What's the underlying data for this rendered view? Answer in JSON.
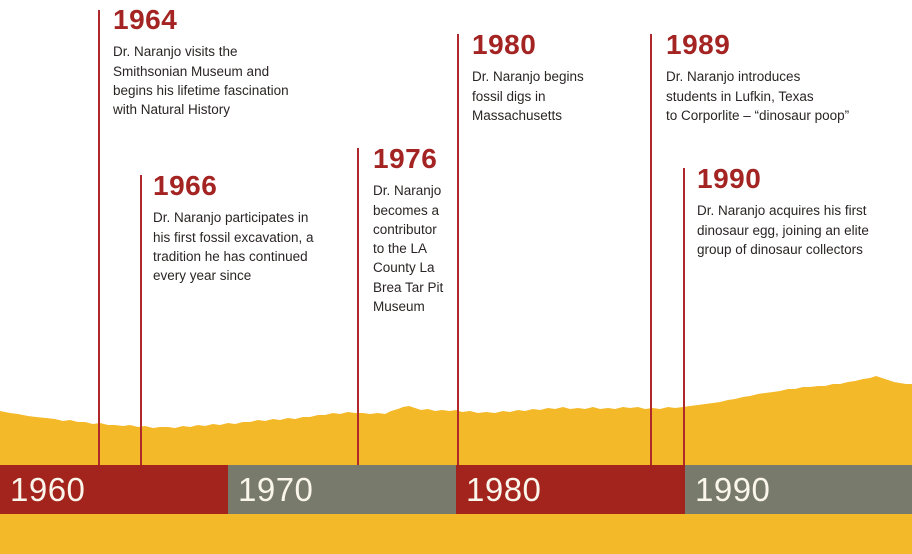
{
  "colors": {
    "accent_red": "#a32422",
    "line_red": "#b0272c",
    "bar_red": "#a3241d",
    "bar_gray": "#787a6b",
    "sand_yellow": "#f4b929",
    "decade_label": "#faf6ec",
    "body_text": "#2a2524"
  },
  "timeline": {
    "events": [
      {
        "year": "1964",
        "description_lines": [
          "Dr. Naranjo visits the",
          "Smithsonian Museum and",
          "begins his lifetime fascination",
          "with Natural History"
        ]
      },
      {
        "year": "1966",
        "description_lines": [
          "Dr. Naranjo participates in",
          "his first fossil excavation, a",
          "tradition he has continued",
          "every year since"
        ]
      },
      {
        "year": "1976",
        "description_lines": [
          "Dr. Naranjo",
          "becomes a",
          "contributor",
          "to the LA",
          "County La",
          "Brea Tar Pit",
          "Museum"
        ]
      },
      {
        "year": "1980",
        "description_lines": [
          "Dr. Naranjo begins",
          "fossil digs in",
          "Massachusetts"
        ]
      },
      {
        "year": "1989",
        "description_lines": [
          "Dr. Naranjo introduces",
          "students in Lufkin, Texas",
          "to Corporlite – “dinosaur poop”"
        ]
      },
      {
        "year": "1990",
        "description_lines": [
          "Dr. Naranjo acquires his first",
          "dinosaur egg, joining an elite",
          "group of dinosaur collectors"
        ]
      }
    ],
    "decades": [
      {
        "label": "1960",
        "tone": "red"
      },
      {
        "label": "1970",
        "tone": "gray"
      },
      {
        "label": "1980",
        "tone": "red"
      },
      {
        "label": "1990",
        "tone": "gray"
      }
    ]
  }
}
